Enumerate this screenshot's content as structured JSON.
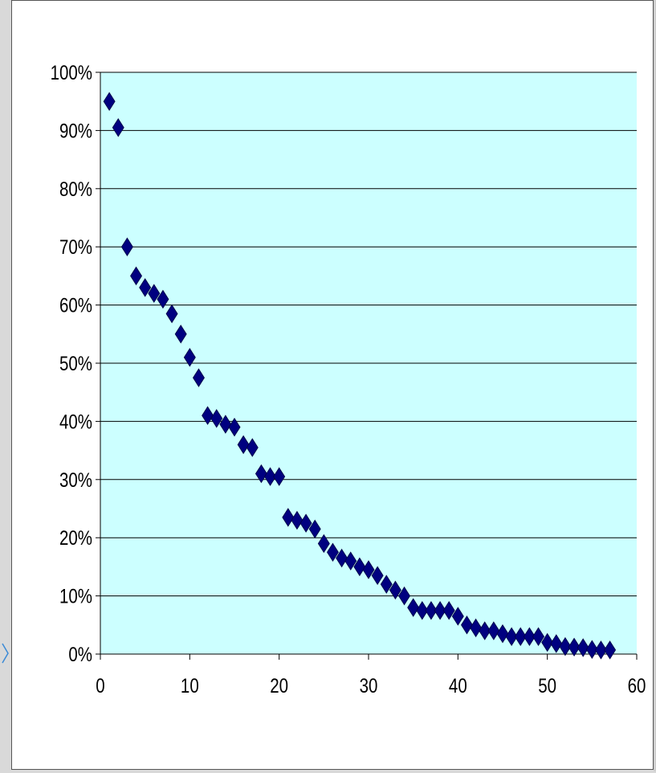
{
  "chart_data": {
    "type": "scatter",
    "title": "",
    "xlabel": "",
    "ylabel": "",
    "xlim": [
      0,
      60
    ],
    "ylim": [
      0,
      100
    ],
    "x_ticks": [
      "0",
      "10",
      "20",
      "30",
      "40",
      "50",
      "60"
    ],
    "y_ticks": [
      "0%",
      "10%",
      "20%",
      "30%",
      "40%",
      "50%",
      "60%",
      "70%",
      "80%",
      "90%",
      "100%"
    ],
    "grid": "horizontal",
    "legend": "none",
    "plot_background": "#ccffff",
    "marker_color": "#000080",
    "marker": "diamond",
    "series": [
      {
        "x": [
          1,
          2,
          3,
          4,
          5,
          6,
          7,
          8,
          9,
          10,
          11,
          12,
          13,
          14,
          15,
          16,
          17,
          18,
          19,
          20,
          21,
          22,
          23,
          24,
          25,
          26,
          27,
          28,
          29,
          30,
          31,
          32,
          33,
          34,
          35,
          36,
          37,
          38,
          39,
          40,
          41,
          42,
          43,
          44,
          45,
          46,
          47,
          48,
          49,
          50,
          51,
          52,
          53,
          54,
          55,
          56,
          57
        ],
        "y": [
          95,
          90.5,
          70,
          65,
          63,
          62,
          61,
          58.5,
          55,
          51,
          47.5,
          41,
          40.5,
          39.5,
          39,
          36,
          35.5,
          31,
          30.5,
          30.5,
          23.5,
          23,
          22.5,
          21.5,
          19,
          17.5,
          16.5,
          16,
          15,
          14.5,
          13.5,
          12,
          11,
          10,
          8,
          7.5,
          7.5,
          7.5,
          7.5,
          6.5,
          5,
          4.5,
          4,
          4,
          3.5,
          3,
          3,
          3,
          3,
          2,
          1.8,
          1.3,
          1.2,
          1.1,
          0.8,
          0.7,
          0.7
        ]
      }
    ]
  }
}
